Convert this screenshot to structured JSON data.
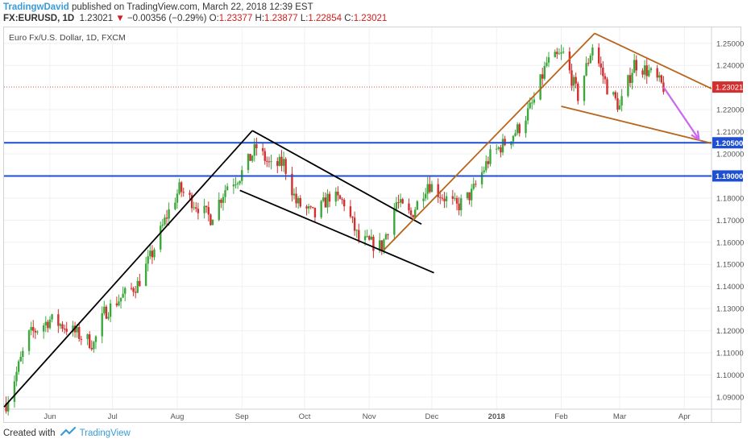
{
  "header": {
    "author": "TradingwDavid",
    "published_text": "published on TradingView.com, March 22, 2018 12:39 EST",
    "symbol": "FX:EURUSD, 1D",
    "last": "1.23021",
    "change": "−0.00356 (−0.29%)",
    "o_label": "O:",
    "o_value": "1.23377",
    "h_label": "H:",
    "h_value": "1.23877",
    "l_label": "L:",
    "l_value": "1.22854",
    "c_label": "C:",
    "c_value": "1.23021"
  },
  "footer": {
    "created_with": "Created with",
    "brand": "TradingView"
  },
  "colors": {
    "bull": "#3ca83c",
    "bear": "#d32f2f",
    "level": "#1e4fd1",
    "black_line": "#000000",
    "orange_line": "#b8651c",
    "arrow": "#cc66ee",
    "price_tag": "#d32f2f"
  },
  "chart_data": {
    "type": "candlestick",
    "title": "Euro Fx/U.S. Dollar, 1D, FXCM",
    "ylim": [
      1.0845,
      1.2572
    ],
    "y_ticks": [
      "1.25000",
      "1.24000",
      "1.22000",
      "1.21000",
      "1.20000",
      "1.18000",
      "1.17000",
      "1.16000",
      "1.15000",
      "1.14000",
      "1.13000",
      "1.12000",
      "1.11000",
      "1.10000",
      "1.09000"
    ],
    "x_ticks": [
      "Jun",
      "Jul",
      "Aug",
      "Sep",
      "Oct",
      "Nov",
      "Dec",
      "2018",
      "Feb",
      "Mar",
      "Apr"
    ],
    "x_tick_dates": [
      "2017-06-01",
      "2017-07-01",
      "2017-08-01",
      "2017-09-01",
      "2017-10-01",
      "2017-11-01",
      "2017-12-01",
      "2018-01-01",
      "2018-02-01",
      "2018-03-01",
      "2018-04-01"
    ],
    "date_range": [
      "2017-05-10",
      "2018-04-14"
    ],
    "price_path": [
      [
        "2017-05-11",
        1.087
      ],
      [
        "2017-05-22",
        1.118
      ],
      [
        "2017-06-01",
        1.125
      ],
      [
        "2017-06-08",
        1.122
      ],
      [
        "2017-06-15",
        1.118
      ],
      [
        "2017-06-22",
        1.114
      ],
      [
        "2017-06-27",
        1.128
      ],
      [
        "2017-07-05",
        1.135
      ],
      [
        "2017-07-13",
        1.141
      ],
      [
        "2017-07-20",
        1.155
      ],
      [
        "2017-07-27",
        1.172
      ],
      [
        "2017-08-02",
        1.184
      ],
      [
        "2017-08-10",
        1.177
      ],
      [
        "2017-08-17",
        1.171
      ],
      [
        "2017-08-25",
        1.186
      ],
      [
        "2017-08-31",
        1.19
      ],
      [
        "2017-09-08",
        1.203
      ],
      [
        "2017-09-15",
        1.194
      ],
      [
        "2017-09-21",
        1.196
      ],
      [
        "2017-09-27",
        1.178
      ],
      [
        "2017-10-06",
        1.172
      ],
      [
        "2017-10-13",
        1.181
      ],
      [
        "2017-10-20",
        1.178
      ],
      [
        "2017-10-27",
        1.161
      ],
      [
        "2017-11-07",
        1.158
      ],
      [
        "2017-11-14",
        1.178
      ],
      [
        "2017-11-21",
        1.172
      ],
      [
        "2017-11-29",
        1.187
      ],
      [
        "2017-12-06",
        1.181
      ],
      [
        "2017-12-13",
        1.176
      ],
      [
        "2017-12-20",
        1.182
      ],
      [
        "2017-12-29",
        1.199
      ],
      [
        "2018-01-05",
        1.205
      ],
      [
        "2018-01-12",
        1.212
      ],
      [
        "2018-01-19",
        1.224
      ],
      [
        "2018-01-25",
        1.241
      ],
      [
        "2018-02-02",
        1.245
      ],
      [
        "2018-02-09",
        1.226
      ],
      [
        "2018-02-16",
        1.249
      ],
      [
        "2018-02-23",
        1.23
      ],
      [
        "2018-03-01",
        1.221
      ],
      [
        "2018-03-08",
        1.241
      ],
      [
        "2018-03-15",
        1.237
      ],
      [
        "2018-03-22",
        1.2302
      ]
    ],
    "horizontal_levels": [
      {
        "value": 1.205,
        "label": "1.20500"
      },
      {
        "value": 1.19,
        "label": "1.19000"
      }
    ],
    "last_price": {
      "value": 1.23021,
      "label": "1.23021"
    },
    "trendlines": [
      {
        "color": "black",
        "from": [
          "2017-05-10",
          1.0855
        ],
        "to": [
          "2017-09-06",
          1.2105
        ]
      },
      {
        "color": "black",
        "from": [
          "2017-09-06",
          1.2105
        ],
        "to": [
          "2017-11-26",
          1.1682
        ]
      },
      {
        "color": "black",
        "from": [
          "2017-08-31",
          1.1835
        ],
        "to": [
          "2017-12-02",
          1.1462
        ]
      },
      {
        "color": "orange",
        "from": [
          "2017-11-08",
          1.1565
        ],
        "to": [
          "2018-02-17",
          1.2545
        ]
      },
      {
        "color": "orange",
        "from": [
          "2018-02-17",
          1.2545
        ],
        "to": [
          "2018-04-14",
          1.2295
        ]
      },
      {
        "color": "orange",
        "from": [
          "2018-02-01",
          1.2215
        ],
        "to": [
          "2018-04-14",
          1.2048
        ]
      }
    ],
    "projection_arrow": {
      "from": [
        "2018-03-22",
        1.2302
      ],
      "to": [
        "2018-04-08",
        1.2065
      ]
    }
  }
}
